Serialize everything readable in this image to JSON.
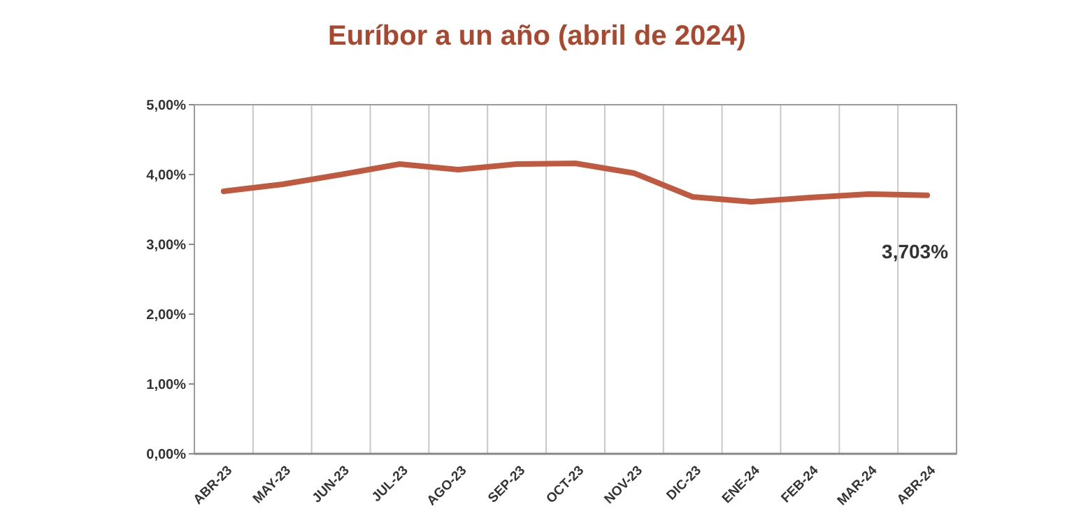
{
  "chart_data": {
    "type": "line",
    "title": "Euríbor a un año (abril de 2024)",
    "categories": [
      "ABR-23",
      "MAY-23",
      "JUN-23",
      "JUL-23",
      "AGO-23",
      "SEP-23",
      "OCT-23",
      "NOV-23",
      "DIC-23",
      "ENE-24",
      "FEB-24",
      "MAR-24",
      "ABR-24"
    ],
    "series": [
      {
        "color": "#bf5a40",
        "values": [
          3.76,
          3.86,
          4.0,
          4.15,
          4.07,
          4.15,
          4.16,
          4.02,
          3.68,
          3.61,
          3.67,
          3.72,
          3.703
        ]
      }
    ],
    "ylim": [
      0,
      5
    ],
    "yticks": [
      {
        "value": 0,
        "label": "0,00%"
      },
      {
        "value": 1,
        "label": "1,00%"
      },
      {
        "value": 2,
        "label": "2,00%"
      },
      {
        "value": 3,
        "label": "3,00%"
      },
      {
        "value": 4,
        "label": "4,00%"
      },
      {
        "value": 5,
        "label": "5,00%"
      }
    ],
    "grid": "x",
    "marker": "none",
    "line_style": "solid",
    "annotations": [
      {
        "text": "3,703%",
        "x": "ABR-24",
        "y": 3.703
      }
    ]
  }
}
